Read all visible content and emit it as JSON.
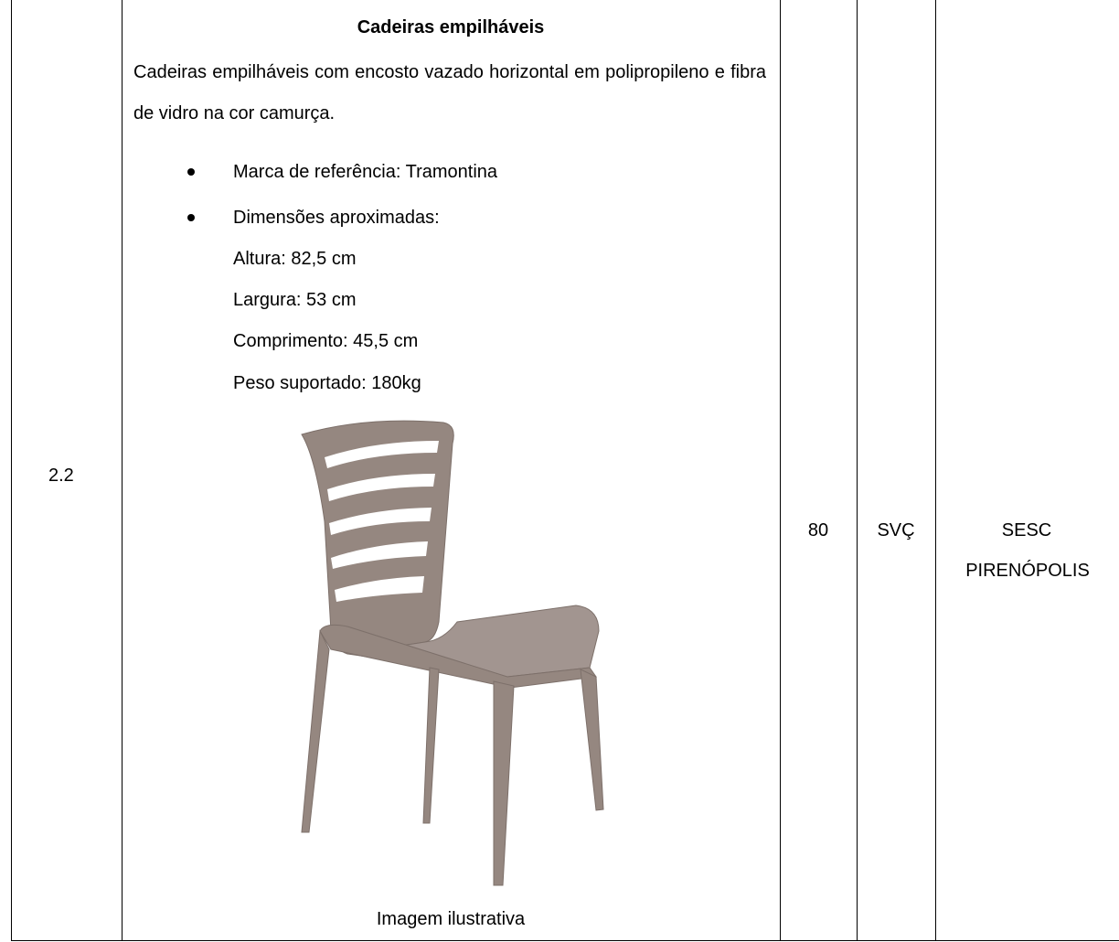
{
  "table": {
    "rows": [
      {
        "item": "2.2",
        "description": {
          "title": "Cadeiras empilháveis",
          "paragraph": "Cadeiras empilháveis com encosto vazado horizontal em polipropileno e fibra de vidro na cor camurça.",
          "bullets": [
            "Marca de referência: Tramontina",
            "Dimensões aproximadas:"
          ],
          "dimensions": [
            "Altura: 82,5 cm",
            "Largura: 53 cm",
            "Comprimento: 45,5 cm",
            "Peso suportado: 180kg"
          ],
          "caption": "Imagem ilustrativa"
        },
        "quantity": 80,
        "unit": "SVÇ",
        "location": [
          "SESC",
          "PIRENÓPOLIS"
        ]
      }
    ]
  }
}
